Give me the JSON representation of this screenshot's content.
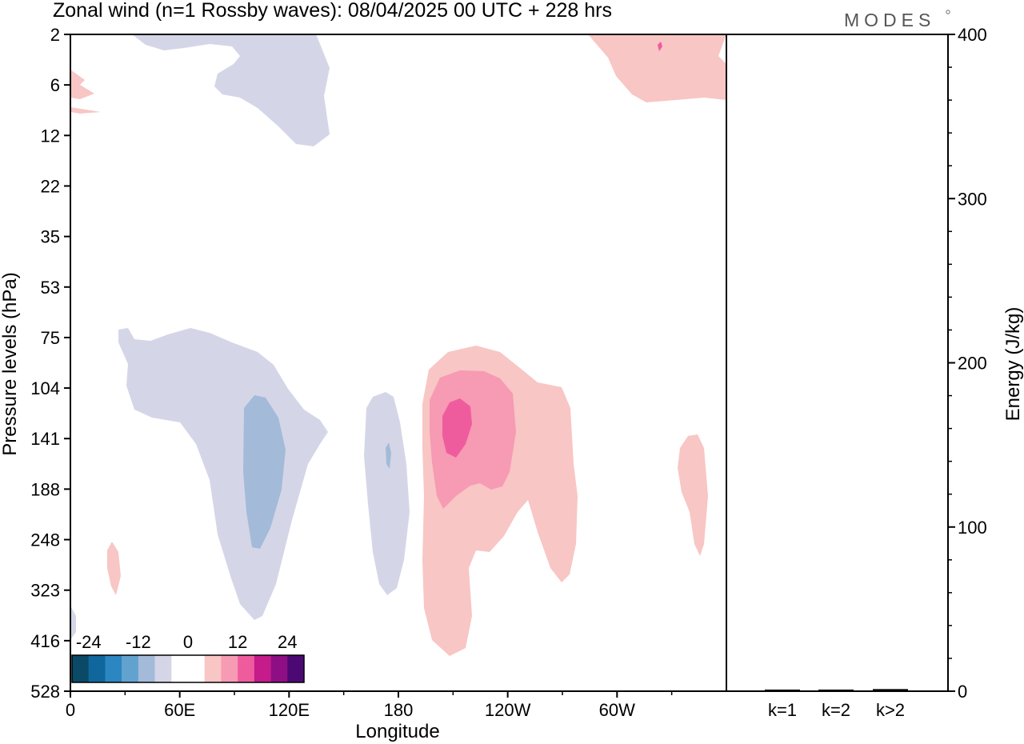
{
  "chart_data": {
    "type": "heatmap",
    "title": "Zonal wind (n=1 Rossby waves):  08/04/2025  00 UTC  + 228 hrs",
    "xlabel": "Longitude",
    "ylabel": "Pressure levels (hPa)",
    "y2label": "Energy (J/kg)",
    "x_ticks": [
      "0",
      "60E",
      "120E",
      "180",
      "120W",
      "60W"
    ],
    "x_tick_lon": [
      0,
      60,
      120,
      180,
      240,
      300
    ],
    "x_range": [
      0,
      360
    ],
    "y_ticks": [
      "2",
      "6",
      "12",
      "22",
      "35",
      "53",
      "75",
      "104",
      "141",
      "188",
      "248",
      "323",
      "416",
      "528"
    ],
    "y_scale": "log",
    "energy_axis": {
      "range": [
        0,
        400
      ],
      "ticks": [
        "0",
        "100",
        "200",
        "300",
        "400"
      ],
      "minor_step": 20
    },
    "energy_categories": [
      "k=1",
      "k=2",
      "k>2"
    ],
    "energy_values": [
      0.5,
      0.5,
      0.8
    ],
    "colorbar": {
      "labels": [
        "-24",
        "-12",
        "0",
        "12",
        "24"
      ],
      "colors": [
        "#0a4a66",
        "#10679e",
        "#2b86c2",
        "#62a2ce",
        "#a4bad9",
        "#d4d6e8",
        "#ffffff",
        "#ffffff",
        "#f8c6c4",
        "#f79ab3",
        "#ef5c9e",
        "#c51b8b",
        "#8e0f84",
        "#4d0973"
      ]
    },
    "contour_colors": {
      "neg1": "#d4d6e8",
      "neg2": "#a4bad9",
      "pos1": "#f8c6c4",
      "pos2": "#f79ab3",
      "pos3": "#ef5c9e"
    },
    "grid": false,
    "legend": "bottom-left colorbar"
  },
  "logo": "MODES"
}
